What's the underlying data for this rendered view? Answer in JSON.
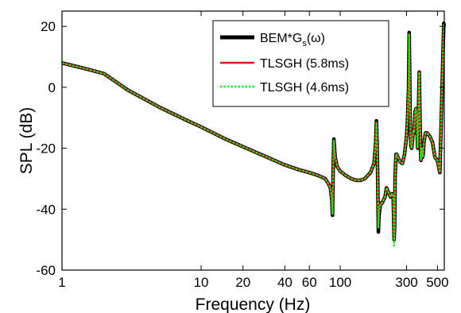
{
  "chart_data": {
    "type": "line",
    "xlabel": "Frequency (Hz)",
    "ylabel": "SPL (dB)",
    "xscale": "log",
    "xlim": [
      1,
      560
    ],
    "ylim": [
      -60,
      25
    ],
    "grid": false,
    "legend_position": "top-right",
    "x_ticks": [
      {
        "value": 1,
        "label": "1"
      },
      {
        "value": 10,
        "label": "10"
      },
      {
        "value": 20,
        "label": "20"
      },
      {
        "value": 40,
        "label": "40"
      },
      {
        "value": 60,
        "label": "60"
      },
      {
        "value": 100,
        "label": "100"
      },
      {
        "value": 300,
        "label": "300"
      },
      {
        "value": 500,
        "label": "500"
      }
    ],
    "y_ticks": [
      {
        "value": 20,
        "label": "20"
      },
      {
        "value": 0,
        "label": "0"
      },
      {
        "value": -20,
        "label": "-20"
      },
      {
        "value": -40,
        "label": "-40"
      },
      {
        "value": -60,
        "label": "-60"
      }
    ],
    "legend": [
      {
        "main": "BEM*G",
        "sub": "s",
        "suffix": "(ω)",
        "color": "#000000",
        "style": "solid"
      },
      {
        "main": "TLSGH (5.8ms)",
        "sub": "",
        "suffix": "",
        "color": "#e8141b",
        "style": "solid"
      },
      {
        "main": "TLSGH (4.6ms)",
        "sub": "",
        "suffix": "",
        "color": "#22e61e",
        "style": "dotted"
      }
    ],
    "series": [
      {
        "color": "#000000",
        "style": "solid",
        "x": [
          1,
          1.5,
          2,
          3,
          5,
          8,
          10,
          15,
          20,
          30,
          40,
          50,
          60,
          70,
          78,
          82,
          85,
          87,
          88,
          89,
          90,
          92,
          95,
          100,
          110,
          120,
          130,
          140,
          150,
          165,
          175,
          180,
          182,
          184,
          186,
          188,
          190,
          195,
          200,
          210,
          215,
          220,
          225,
          230,
          235,
          240,
          242,
          244,
          246,
          248,
          250,
          252,
          255,
          260,
          270,
          280,
          290,
          300,
          305,
          310,
          313,
          315,
          318,
          322,
          326,
          330,
          335,
          340,
          345,
          350,
          355,
          360,
          365,
          370,
          375,
          380,
          385,
          390,
          395,
          400,
          410,
          420,
          440,
          460,
          480,
          500,
          520,
          540,
          555,
          560
        ],
        "y": [
          8,
          6,
          4.5,
          -1,
          -6.5,
          -11,
          -13,
          -17,
          -19.5,
          -23,
          -25.5,
          -27,
          -28,
          -29,
          -30,
          -31.5,
          -33,
          -37,
          -42,
          -27,
          -17,
          -23,
          -26,
          -27.5,
          -29,
          -30,
          -30.5,
          -30.5,
          -30,
          -28,
          -25,
          -18,
          -11,
          -18,
          -30,
          -47.5,
          -42,
          -38,
          -38,
          -36,
          -33,
          -34,
          -35,
          -36,
          -35,
          -35,
          -42,
          -50,
          -46,
          -30,
          -25,
          -22,
          -22,
          -23,
          -24.5,
          -25,
          -22,
          -16,
          -10,
          0,
          18,
          8,
          -10,
          -19,
          -20,
          -18,
          -14,
          -15,
          -8,
          -7,
          -10,
          -20,
          -8,
          5,
          -12,
          -24,
          -20,
          -23,
          -22,
          -18,
          -15,
          -15,
          -16,
          -18,
          -23,
          -24,
          -28,
          0,
          21,
          20
        ]
      },
      {
        "color": "#e8141b",
        "style": "solid",
        "x": [
          1,
          1.5,
          2,
          3,
          5,
          8,
          10,
          15,
          20,
          30,
          40,
          50,
          60,
          70,
          78,
          82,
          85,
          87,
          88,
          89,
          90,
          92,
          95,
          100,
          110,
          120,
          130,
          140,
          150,
          165,
          175,
          180,
          182,
          184,
          186,
          188,
          190,
          195,
          200,
          210,
          215,
          220,
          225,
          230,
          235,
          240,
          242,
          244,
          246,
          248,
          250,
          252,
          255,
          260,
          270,
          280,
          290,
          300,
          305,
          310,
          313,
          315,
          318,
          322,
          326,
          330,
          335,
          340,
          345,
          350,
          355,
          360,
          365,
          370,
          375,
          380,
          385,
          390,
          395,
          400,
          410,
          420,
          440,
          460,
          480,
          500,
          520,
          540,
          555,
          560
        ],
        "y": [
          8,
          6,
          4.5,
          -1,
          -6.5,
          -11,
          -13,
          -17,
          -19.5,
          -23,
          -25.5,
          -27,
          -28,
          -29,
          -30,
          -31.5,
          -33,
          -37,
          -41.5,
          -27,
          -17.5,
          -23,
          -26,
          -27.5,
          -29,
          -30,
          -30.5,
          -30.5,
          -30,
          -28,
          -25,
          -18,
          -11.5,
          -18,
          -30,
          -46,
          -41,
          -38,
          -38,
          -36,
          -33,
          -34,
          -35,
          -36,
          -35,
          -35,
          -42,
          -50,
          -46,
          -30,
          -25,
          -22,
          -22,
          -23,
          -24.5,
          -25,
          -22,
          -16,
          -10,
          0,
          17.5,
          8,
          -10,
          -19,
          -20,
          -18,
          -14,
          -15,
          -8,
          -7,
          -10,
          -20,
          -8,
          5,
          -12,
          -24,
          -20,
          -23,
          -22,
          -18,
          -15,
          -15,
          -16,
          -18,
          -23,
          -24,
          -28,
          0,
          20.5,
          20
        ]
      },
      {
        "color": "#22e61e",
        "style": "dotted",
        "x": [
          1,
          1.5,
          2,
          3,
          5,
          8,
          10,
          15,
          20,
          30,
          40,
          50,
          60,
          70,
          78,
          82,
          85,
          87,
          88,
          89,
          90,
          92,
          95,
          100,
          110,
          120,
          130,
          140,
          150,
          165,
          175,
          180,
          182,
          184,
          186,
          188,
          190,
          195,
          200,
          210,
          215,
          220,
          225,
          230,
          235,
          240,
          242,
          244,
          246,
          248,
          250,
          252,
          255,
          260,
          270,
          280,
          290,
          300,
          305,
          310,
          313,
          315,
          318,
          322,
          326,
          330,
          335,
          340,
          345,
          350,
          355,
          360,
          365,
          370,
          375,
          380,
          385,
          390,
          395,
          400,
          410,
          420,
          440,
          460,
          480,
          500,
          520,
          540,
          555,
          560
        ],
        "y": [
          8,
          6,
          4.5,
          -1,
          -6.5,
          -11,
          -13,
          -17,
          -19.5,
          -23,
          -25.5,
          -27,
          -28,
          -29,
          -30,
          -31.5,
          -33,
          -37,
          -41.5,
          -27,
          -17.5,
          -23,
          -26,
          -27.5,
          -29,
          -30,
          -30.5,
          -30.5,
          -30,
          -28,
          -25,
          -18,
          -11.5,
          -18,
          -30,
          -46,
          -41,
          -38,
          -38,
          -36,
          -33,
          -34,
          -35,
          -36,
          -35,
          -35,
          -42,
          -52,
          -46,
          -30,
          -25,
          -22,
          -22,
          -23,
          -24.5,
          -25,
          -22,
          -16,
          -10,
          0,
          17.5,
          8,
          -10,
          -19,
          -20,
          -18,
          -14,
          -15,
          -8,
          -7,
          -10,
          -20,
          -8,
          5,
          -12,
          -24,
          -20,
          -23,
          -22,
          -18,
          -15,
          -15,
          -16,
          -18,
          -23,
          -24,
          -28,
          0,
          20.5,
          20
        ]
      }
    ]
  }
}
